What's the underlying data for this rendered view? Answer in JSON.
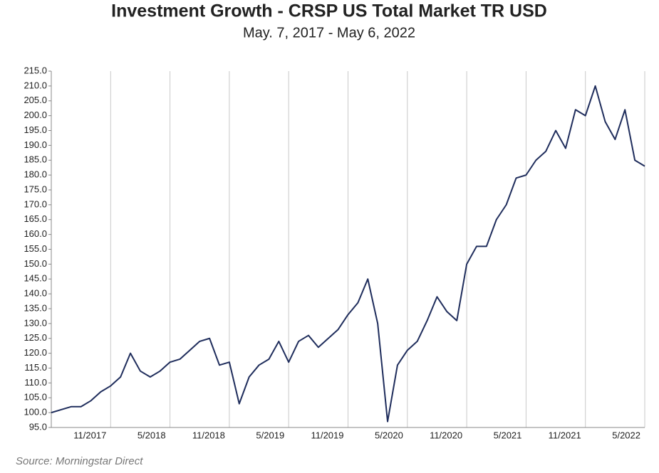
{
  "chart_data": {
    "type": "line",
    "title": "Investment Growth - CRSP US Total Market TR USD",
    "subtitle": "May. 7, 2017 - May 6, 2022",
    "source": "Source: Morningstar Direct",
    "x": [
      "2017-05",
      "2017-06",
      "2017-07",
      "2017-08",
      "2017-09",
      "2017-10",
      "2017-11",
      "2017-12",
      "2018-01",
      "2018-02",
      "2018-03",
      "2018-04",
      "2018-05",
      "2018-06",
      "2018-07",
      "2018-08",
      "2018-09",
      "2018-10",
      "2018-11",
      "2018-12",
      "2019-01",
      "2019-02",
      "2019-03",
      "2019-04",
      "2019-05",
      "2019-06",
      "2019-07",
      "2019-08",
      "2019-09",
      "2019-10",
      "2019-11",
      "2019-12",
      "2020-01",
      "2020-02",
      "2020-03",
      "2020-04",
      "2020-05",
      "2020-06",
      "2020-07",
      "2020-08",
      "2020-09",
      "2020-10",
      "2020-11",
      "2020-12",
      "2021-01",
      "2021-02",
      "2021-03",
      "2021-04",
      "2021-05",
      "2021-06",
      "2021-07",
      "2021-08",
      "2021-09",
      "2021-10",
      "2021-11",
      "2021-12",
      "2022-01",
      "2022-02",
      "2022-03",
      "2022-04",
      "2022-05"
    ],
    "series": [
      {
        "color": "#1f2d5c",
        "values": [
          100,
          101,
          102,
          102,
          104,
          107,
          109,
          112,
          120,
          114,
          112,
          114,
          117,
          118,
          121,
          124,
          125,
          116,
          117,
          103,
          112,
          116,
          118,
          124,
          117,
          124,
          126,
          122,
          125,
          128,
          133,
          137,
          145,
          130,
          97,
          116,
          121,
          124,
          131,
          139,
          134,
          131,
          150,
          156,
          156,
          165,
          170,
          179,
          180,
          185,
          188,
          195,
          189,
          202,
          200,
          210,
          198,
          192,
          202,
          185,
          183
        ]
      }
    ],
    "xlim": [
      "2017-05",
      "2022-05"
    ],
    "xticks": [
      {
        "value": "2017-11",
        "label": "11/2017"
      },
      {
        "value": "2018-05",
        "label": "5/2018"
      },
      {
        "value": "2018-11",
        "label": "11/2018"
      },
      {
        "value": "2019-05",
        "label": "5/2019"
      },
      {
        "value": "2019-11",
        "label": "11/2019"
      },
      {
        "value": "2020-05",
        "label": "5/2020"
      },
      {
        "value": "2020-11",
        "label": "11/2020"
      },
      {
        "value": "2021-05",
        "label": "5/2021"
      },
      {
        "value": "2021-11",
        "label": "11/2021"
      },
      {
        "value": "2022-05",
        "label": "5/2022"
      }
    ],
    "ylim": [
      95,
      215
    ],
    "yticks": [
      {
        "value": 95,
        "label": "95.0"
      },
      {
        "value": 100,
        "label": "100.0"
      },
      {
        "value": 105,
        "label": "105.0"
      },
      {
        "value": 110,
        "label": "110.0"
      },
      {
        "value": 115,
        "label": "115.0"
      },
      {
        "value": 120,
        "label": "120.0"
      },
      {
        "value": 125,
        "label": "125.0"
      },
      {
        "value": 130,
        "label": "130.0"
      },
      {
        "value": 135,
        "label": "135.0"
      },
      {
        "value": 140,
        "label": "140.0"
      },
      {
        "value": 145,
        "label": "145.0"
      },
      {
        "value": 150,
        "label": "150.0"
      },
      {
        "value": 155,
        "label": "155.0"
      },
      {
        "value": 160,
        "label": "160.0"
      },
      {
        "value": 165,
        "label": "165.0"
      },
      {
        "value": 170,
        "label": "170.0"
      },
      {
        "value": 175,
        "label": "175.0"
      },
      {
        "value": 180,
        "label": "180.0"
      },
      {
        "value": 185,
        "label": "185.0"
      },
      {
        "value": 190,
        "label": "190.0"
      },
      {
        "value": 195,
        "label": "195.0"
      },
      {
        "value": 200,
        "label": "200.0"
      },
      {
        "value": 205,
        "label": "205.0"
      },
      {
        "value": 210,
        "label": "210.0"
      },
      {
        "value": 215,
        "label": "215.0"
      }
    ],
    "grid": true
  }
}
